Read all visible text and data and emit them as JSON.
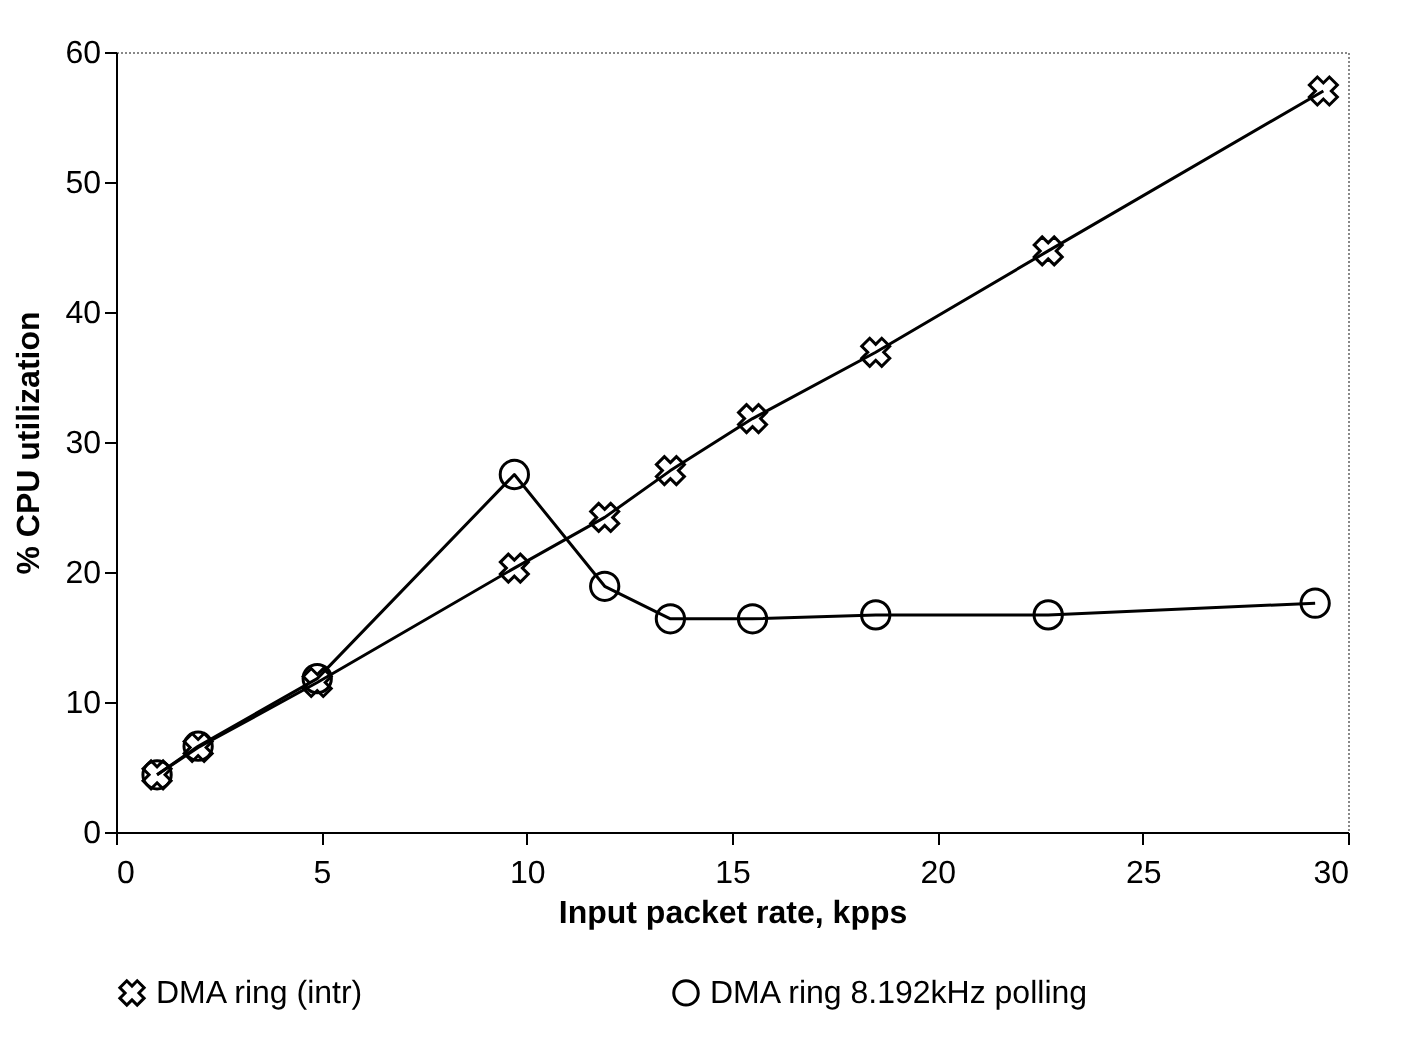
{
  "chart_data": {
    "type": "line",
    "xlabel": "Input packet rate, kpps",
    "ylabel": "% CPU utilization",
    "xlim": [
      0,
      30
    ],
    "xticks": [
      0,
      5,
      10,
      15,
      20,
      25,
      30
    ],
    "ylim": [
      0,
      60
    ],
    "yticks": [
      0,
      10,
      20,
      30,
      40,
      50,
      60
    ],
    "grid": false,
    "legend": "bottom",
    "line_style": "solid",
    "series": [
      {
        "name": "DMA ring (intr)",
        "color": "#000000",
        "marker": "cross",
        "x": [
          1,
          2,
          4.9,
          9.7,
          11.9,
          13.5,
          15.5,
          18.5,
          22.7,
          29.4
        ],
        "values": [
          4.4,
          6.5,
          11.5,
          20.3,
          24.2,
          27.8,
          31.8,
          36.9,
          44.7,
          57
        ]
      },
      {
        "name": "DMA ring 8.192kHz polling",
        "color": "#000000",
        "marker": "circle",
        "x": [
          1,
          2,
          4.9,
          9.7,
          11.9,
          13.5,
          15.5,
          18.5,
          22.7,
          29.2
        ],
        "values": [
          4.4,
          6.6,
          11.8,
          27.5,
          18.9,
          16.4,
          16.4,
          16.7,
          16.7,
          17.6
        ]
      }
    ]
  }
}
